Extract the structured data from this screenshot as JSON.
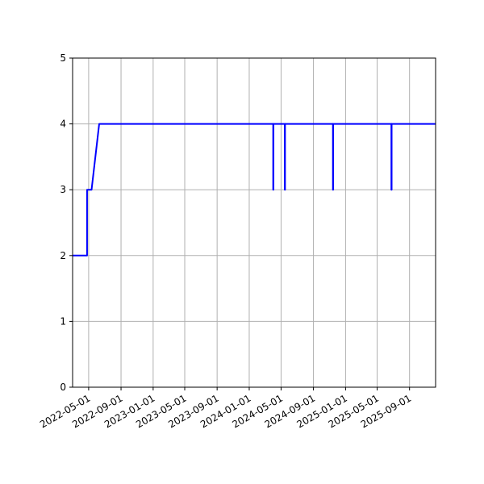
{
  "chart_data": {
    "type": "line",
    "title": "",
    "xlabel": "",
    "ylabel": "",
    "x_is_date": true,
    "xlim": [
      "2022-03-01",
      "2025-12-09"
    ],
    "ylim": [
      0,
      5
    ],
    "grid": true,
    "x_ticks": [
      "2022-05-01",
      "2022-09-01",
      "2023-01-01",
      "2023-05-01",
      "2023-09-01",
      "2024-01-01",
      "2024-05-01",
      "2024-09-01",
      "2025-01-01",
      "2025-05-01",
      "2025-09-01"
    ],
    "y_ticks": [
      0,
      1,
      2,
      3,
      4,
      5
    ],
    "series": [
      {
        "color": "#0000ff",
        "points": [
          {
            "x": "2022-03-01",
            "y": 2
          },
          {
            "x": "2022-04-25",
            "y": 2
          },
          {
            "x": "2022-04-25",
            "y": 3
          },
          {
            "x": "2022-05-12",
            "y": 3
          },
          {
            "x": "2022-06-10",
            "y": 4
          },
          {
            "x": "2024-04-01",
            "y": 4
          },
          {
            "x": "2024-04-01",
            "y": 3
          },
          {
            "x": "2024-04-02",
            "y": 3
          },
          {
            "x": "2024-04-02",
            "y": 4
          },
          {
            "x": "2024-05-15",
            "y": 4
          },
          {
            "x": "2024-05-15",
            "y": 3
          },
          {
            "x": "2024-05-16",
            "y": 3
          },
          {
            "x": "2024-05-16",
            "y": 4
          },
          {
            "x": "2024-11-14",
            "y": 4
          },
          {
            "x": "2024-11-14",
            "y": 3
          },
          {
            "x": "2024-11-15",
            "y": 3
          },
          {
            "x": "2024-11-15",
            "y": 4
          },
          {
            "x": "2025-06-24",
            "y": 4
          },
          {
            "x": "2025-06-24",
            "y": 3
          },
          {
            "x": "2025-06-25",
            "y": 3
          },
          {
            "x": "2025-06-25",
            "y": 4
          },
          {
            "x": "2025-12-09",
            "y": 4
          }
        ]
      }
    ]
  }
}
